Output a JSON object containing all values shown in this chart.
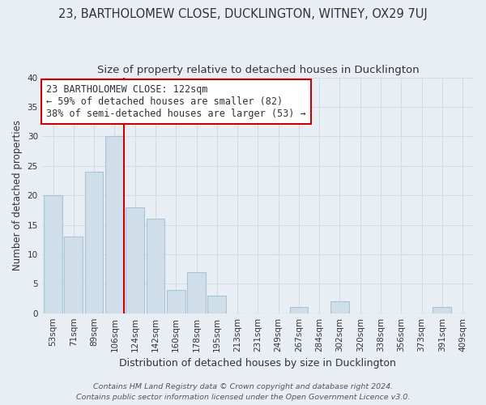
{
  "title": "23, BARTHOLOMEW CLOSE, DUCKLINGTON, WITNEY, OX29 7UJ",
  "subtitle": "Size of property relative to detached houses in Ducklington",
  "xlabel": "Distribution of detached houses by size in Ducklington",
  "ylabel": "Number of detached properties",
  "bar_labels": [
    "53sqm",
    "71sqm",
    "89sqm",
    "106sqm",
    "124sqm",
    "142sqm",
    "160sqm",
    "178sqm",
    "195sqm",
    "213sqm",
    "231sqm",
    "249sqm",
    "267sqm",
    "284sqm",
    "302sqm",
    "320sqm",
    "338sqm",
    "356sqm",
    "373sqm",
    "391sqm",
    "409sqm"
  ],
  "bar_values": [
    20,
    13,
    24,
    30,
    18,
    16,
    4,
    7,
    3,
    0,
    0,
    0,
    1,
    0,
    2,
    0,
    0,
    0,
    0,
    1,
    0
  ],
  "bar_color": "#cfdee8",
  "bar_edge_color": "#a8c4d8",
  "vline_after_bar": 3,
  "vline_color": "#cc0000",
  "annotation_text": "23 BARTHOLOMEW CLOSE: 122sqm\n← 59% of detached houses are smaller (82)\n38% of semi-detached houses are larger (53) →",
  "annotation_box_facecolor": "#ffffff",
  "annotation_box_edgecolor": "#cc0000",
  "ylim": [
    0,
    40
  ],
  "yticks": [
    0,
    5,
    10,
    15,
    20,
    25,
    30,
    35,
    40
  ],
  "footer_line1": "Contains HM Land Registry data © Crown copyright and database right 2024.",
  "footer_line2": "Contains public sector information licensed under the Open Government Licence v3.0.",
  "background_color": "#e8eef4",
  "grid_color": "#d0dce8",
  "plot_bg_color": "#e8eef4",
  "title_fontsize": 10.5,
  "subtitle_fontsize": 9.5,
  "xlabel_fontsize": 9,
  "ylabel_fontsize": 8.5,
  "tick_fontsize": 7.5,
  "annotation_fontsize": 8.5,
  "footer_fontsize": 6.8
}
